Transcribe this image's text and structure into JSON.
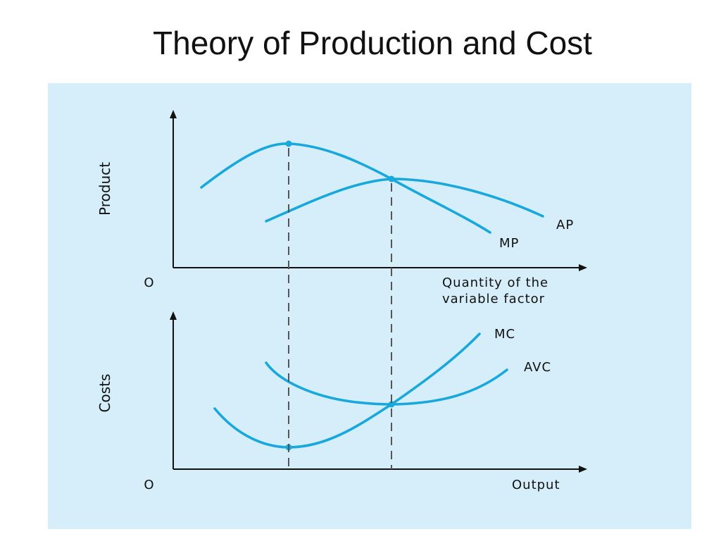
{
  "slide": {
    "title": "Theory of Production and Cost"
  },
  "colors": {
    "panel_background": "#d5eef9",
    "curve": "#18a8dc",
    "axis": "#111111",
    "guide": "#555555"
  },
  "top_graph": {
    "y_axis_label": "Product",
    "origin_label": "O",
    "x_axis_label_line1": "Quantity of the",
    "x_axis_label_line2": "variable factor",
    "curves": {
      "ap": {
        "label": "AP"
      },
      "mp": {
        "label": "MP"
      }
    }
  },
  "bottom_graph": {
    "y_axis_label": "Costs",
    "origin_label": "O",
    "x_axis_label": "Output",
    "curves": {
      "mc": {
        "label": "MC"
      },
      "avc": {
        "label": "AVC"
      }
    }
  }
}
